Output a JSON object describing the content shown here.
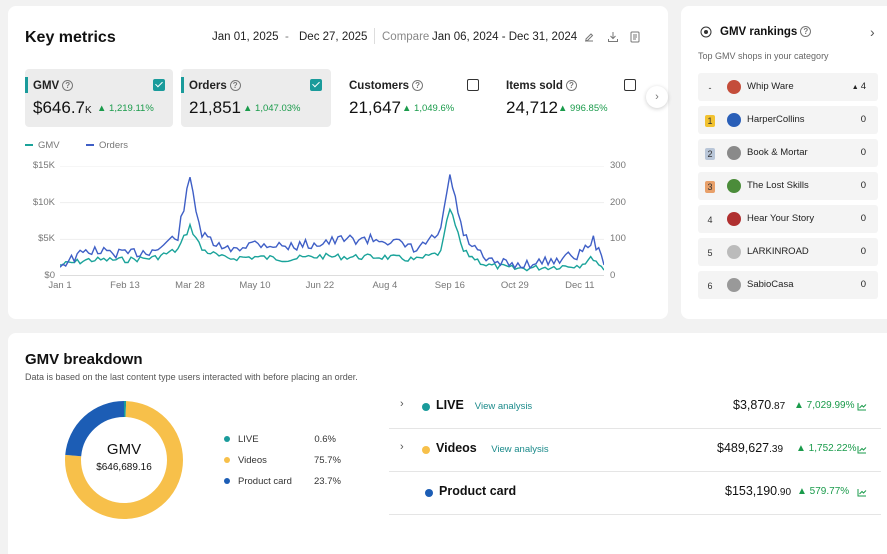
{
  "key_metrics": {
    "title": "Key metrics",
    "date_start": "Jan 01, 2025",
    "date_sep": "-",
    "date_end": "Dec 27, 2025",
    "compare_label": "Compare",
    "compare_range": "Jan 06, 2024 - Dec 31, 2024",
    "metrics": [
      {
        "label": "GMV",
        "currency": "$",
        "value": "646.7",
        "unit": "K",
        "change": "1,219.11%",
        "checked": true,
        "active": true
      },
      {
        "label": "Orders",
        "currency": "",
        "value": "21,851",
        "unit": "",
        "change": "1,047.03%",
        "checked": true,
        "active": true
      },
      {
        "label": "Customers",
        "currency": "",
        "value": "21,647",
        "unit": "",
        "change": "1,049.6%",
        "checked": false,
        "active": false
      },
      {
        "label": "Items sold",
        "currency": "",
        "value": "24,712",
        "unit": "",
        "change": "996.85%",
        "checked": false,
        "active": false
      }
    ]
  },
  "chart_data": {
    "type": "line",
    "x_ticks": [
      "Jan 1",
      "Feb 13",
      "Mar 28",
      "May 10",
      "Jun 22",
      "Aug 4",
      "Sep 16",
      "Oct 29",
      "Dec 11"
    ],
    "y_left_ticks": [
      "$15K",
      "$10K",
      "$5K",
      "$0"
    ],
    "y_right_ticks": [
      "300",
      "200",
      "100",
      "0"
    ],
    "y_left_range": [
      0,
      15000
    ],
    "y_right_range": [
      0,
      300
    ],
    "series": [
      {
        "name": "GMV",
        "color": "#1aa39a",
        "axis": "left",
        "points": [
          [
            "Jan 1",
            1500
          ],
          [
            "Jan 20",
            2200
          ],
          [
            "Feb 13",
            2200
          ],
          [
            "Mar 5",
            2500
          ],
          [
            "Mar 20",
            3600
          ],
          [
            "Mar 28",
            6800
          ],
          [
            "Apr 5",
            3600
          ],
          [
            "Apr 20",
            2400
          ],
          [
            "May 10",
            2600
          ],
          [
            "Jun 1",
            2300
          ],
          [
            "Jun 22",
            2700
          ],
          [
            "Jul 10",
            2600
          ],
          [
            "Aug 4",
            2600
          ],
          [
            "Aug 25",
            2200
          ],
          [
            "Sep 10",
            3200
          ],
          [
            "Sep 16",
            9200
          ],
          [
            "Sep 25",
            3300
          ],
          [
            "Oct 10",
            1500
          ],
          [
            "Oct 29",
            1000
          ],
          [
            "Nov 20",
            1200
          ],
          [
            "Dec 11",
            1500
          ],
          [
            "Dec 20",
            2500
          ],
          [
            "Dec 27",
            800
          ]
        ]
      },
      {
        "name": "Orders",
        "color": "#3f5fc6",
        "axis": "right",
        "points": [
          [
            "Jan 1",
            30
          ],
          [
            "Jan 20",
            70
          ],
          [
            "Feb 13",
            60
          ],
          [
            "Mar 5",
            70
          ],
          [
            "Mar 20",
            110
          ],
          [
            "Mar 28",
            265
          ],
          [
            "Apr 5",
            110
          ],
          [
            "Apr 20",
            70
          ],
          [
            "May 10",
            90
          ],
          [
            "Jun 1",
            80
          ],
          [
            "Jun 22",
            90
          ],
          [
            "Jul 10",
            100
          ],
          [
            "Aug 4",
            100
          ],
          [
            "Aug 25",
            70
          ],
          [
            "Sep 10",
            120
          ],
          [
            "Sep 16",
            275
          ],
          [
            "Sep 25",
            110
          ],
          [
            "Oct 10",
            40
          ],
          [
            "Oct 29",
            30
          ],
          [
            "Nov 20",
            40
          ],
          [
            "Dec 11",
            60
          ],
          [
            "Dec 20",
            100
          ],
          [
            "Dec 27",
            30
          ]
        ]
      }
    ]
  },
  "rankings": {
    "title": "GMV rankings",
    "subtitle": "Top GMV shops in your category",
    "items": [
      {
        "rank": "-",
        "name": "Whip Ware",
        "value": "4",
        "change_up": true,
        "logo_color": "#c44d3a"
      },
      {
        "rank": "1",
        "name": "HarperCollins",
        "value": "0",
        "change_up": false,
        "logo_color": "#2a5fb8"
      },
      {
        "rank": "2",
        "name": "Book & Mortar",
        "value": "0",
        "change_up": false,
        "logo_color": "#8a8a8a"
      },
      {
        "rank": "3",
        "name": "The Lost Skills",
        "value": "0",
        "change_up": false,
        "logo_color": "#4b8c3a"
      },
      {
        "rank": "4",
        "name": "Hear Your Story",
        "value": "0",
        "change_up": false,
        "logo_color": "#b03030"
      },
      {
        "rank": "5",
        "name": "LARKINROAD",
        "value": "0",
        "change_up": false,
        "logo_color": "#bbbbbb"
      },
      {
        "rank": "6",
        "name": "SabioCasa",
        "value": "0",
        "change_up": false,
        "logo_color": "#999999"
      }
    ]
  },
  "breakdown": {
    "title": "GMV breakdown",
    "subtitle": "Data is based on the last content type users interacted with before placing an order.",
    "donut_label": "GMV",
    "donut_value": "$646,689.16",
    "segments": [
      {
        "name": "LIVE",
        "percent": "0.6%",
        "share": 0.6,
        "color": "#1a9b9b"
      },
      {
        "name": "Videos",
        "percent": "75.7%",
        "share": 75.7,
        "color": "#f7c04a"
      },
      {
        "name": "Product card",
        "percent": "23.7%",
        "share": 23.7,
        "color": "#1c5db5"
      }
    ],
    "rows": [
      {
        "name": "LIVE",
        "link": "View analysis",
        "currency": "$",
        "amount": "3,870",
        "cents": ".87",
        "change": "7,029.99%",
        "color": "#1a9b9b",
        "expandable": true
      },
      {
        "name": "Videos",
        "link": "View analysis",
        "currency": "$",
        "amount": "489,627",
        "cents": ".39",
        "change": "1,752.22%",
        "color": "#f7c04a",
        "expandable": true
      },
      {
        "name": "Product card",
        "link": "",
        "currency": "$",
        "amount": "153,190",
        "cents": ".90",
        "change": "579.77%",
        "color": "#1c5db5",
        "expandable": false
      }
    ]
  }
}
